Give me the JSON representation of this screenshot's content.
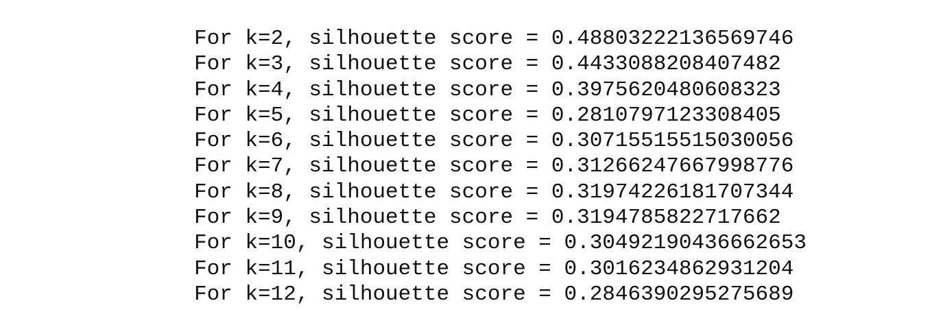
{
  "output": {
    "lines": [
      "For k=2, silhouette score = 0.48803222136569746",
      "For k=3, silhouette score = 0.4433088208407482",
      "For k=4, silhouette score = 0.3975620480608323",
      "For k=5, silhouette score = 0.2810797123308405",
      "For k=6, silhouette score = 0.30715515515030056",
      "For k=7, silhouette score = 0.31266247667998776",
      "For k=8, silhouette score = 0.31974226181707344",
      "For k=9, silhouette score = 0.3194785822717662",
      "For k=10, silhouette score = 0.30492190436662653",
      "For k=11, silhouette score = 0.3016234862931204",
      "For k=12, silhouette score = 0.2846390295275689"
    ]
  }
}
